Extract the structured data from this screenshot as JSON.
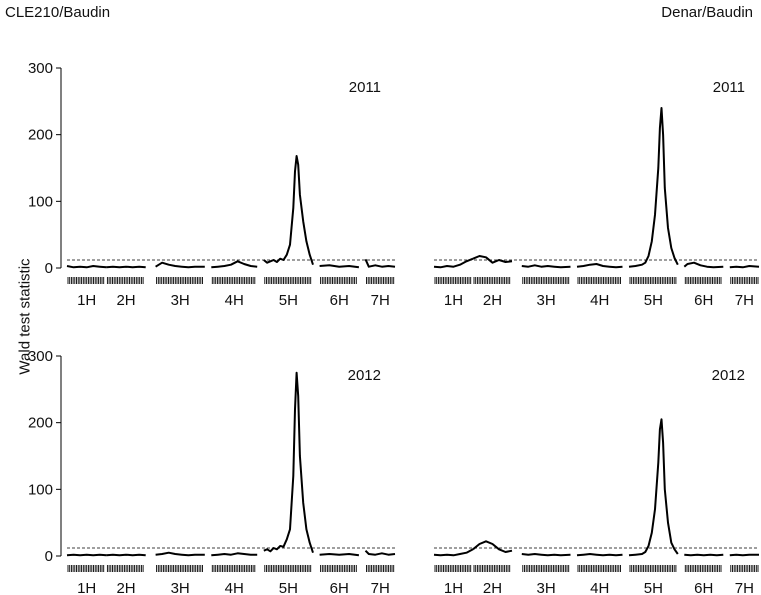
{
  "column_titles": [
    "CLE210/Baudin",
    "Denar/Baudin"
  ],
  "ylabel": "Wald test statistic",
  "chart_data": [
    {
      "type": "line",
      "cross": "CLE210/Baudin",
      "year": "2011",
      "ylim": [
        0,
        300
      ],
      "yticks": [
        0,
        100,
        200,
        300
      ],
      "xlim": [
        0,
        100
      ],
      "chromosomes": [
        "1H",
        "2H",
        "3H",
        "4H",
        "5H",
        "6H",
        "7H"
      ],
      "chromosome_ranges": [
        [
          0,
          12
        ],
        [
          12,
          24
        ],
        [
          27,
          42
        ],
        [
          44,
          58
        ],
        [
          60,
          75
        ],
        [
          77,
          89
        ],
        [
          91,
          100
        ]
      ],
      "threshold": 12,
      "series": [
        {
          "x": [
            0,
            2,
            4,
            6,
            8,
            10,
            12,
            14,
            16,
            18,
            20,
            22,
            24,
            27,
            29,
            31,
            33,
            35,
            37,
            39,
            42,
            44,
            46,
            48,
            50,
            52,
            54,
            56,
            58,
            60,
            61,
            62,
            63,
            64,
            65,
            66,
            67,
            68,
            69,
            69.5,
            70,
            70.5,
            71,
            72,
            73,
            74,
            75,
            77,
            80,
            83,
            86,
            89,
            89.5,
            91,
            92,
            94,
            96,
            98,
            100
          ],
          "y": [
            3,
            1,
            2,
            1,
            3,
            2,
            1,
            2,
            1,
            2,
            1,
            2,
            1,
            2,
            8,
            5,
            3,
            2,
            1,
            2,
            2,
            1,
            2,
            3,
            5,
            10,
            6,
            3,
            2,
            12,
            8,
            10,
            12,
            9,
            14,
            12,
            20,
            35,
            90,
            145,
            168,
            155,
            110,
            70,
            40,
            20,
            5,
            3,
            4,
            2,
            3,
            1,
            2,
            13,
            2,
            4,
            2,
            3,
            2
          ]
        }
      ]
    },
    {
      "type": "line",
      "cross": "Denar/Baudin",
      "year": "2011",
      "ylim": [
        0,
        300
      ],
      "yticks": [
        0,
        100,
        200,
        300
      ],
      "xlim": [
        0,
        100
      ],
      "chromosomes": [
        "1H",
        "2H",
        "3H",
        "4H",
        "5H",
        "6H",
        "7H"
      ],
      "chromosome_ranges": [
        [
          0,
          12
        ],
        [
          12,
          24
        ],
        [
          27,
          42
        ],
        [
          44,
          58
        ],
        [
          60,
          75
        ],
        [
          77,
          89
        ],
        [
          91,
          100
        ]
      ],
      "threshold": 12,
      "series": [
        {
          "x": [
            0,
            2,
            4,
            6,
            8,
            10,
            12,
            14,
            16,
            18,
            20,
            22,
            24,
            27,
            29,
            31,
            33,
            35,
            37,
            39,
            42,
            44,
            46,
            48,
            50,
            52,
            54,
            56,
            58,
            60,
            62,
            64,
            65,
            66,
            67,
            68,
            69,
            69.5,
            70,
            70.5,
            71,
            72,
            73,
            74,
            75,
            77,
            78,
            80,
            82,
            84,
            86,
            89,
            91,
            93,
            95,
            97,
            100
          ],
          "y": [
            2,
            1,
            3,
            2,
            5,
            10,
            14,
            18,
            16,
            8,
            12,
            9,
            10,
            3,
            2,
            4,
            2,
            3,
            2,
            1,
            2,
            2,
            3,
            5,
            6,
            3,
            2,
            1,
            2,
            2,
            3,
            5,
            8,
            18,
            40,
            80,
            150,
            210,
            240,
            200,
            120,
            60,
            30,
            15,
            5,
            2,
            6,
            8,
            4,
            2,
            1,
            2,
            1,
            2,
            1,
            3,
            2
          ]
        }
      ]
    },
    {
      "type": "line",
      "cross": "CLE210/Baudin",
      "year": "2012",
      "ylim": [
        0,
        300
      ],
      "yticks": [
        0,
        100,
        200,
        300
      ],
      "xlim": [
        0,
        100
      ],
      "chromosomes": [
        "1H",
        "2H",
        "3H",
        "4H",
        "5H",
        "6H",
        "7H"
      ],
      "chromosome_ranges": [
        [
          0,
          12
        ],
        [
          12,
          24
        ],
        [
          27,
          42
        ],
        [
          44,
          58
        ],
        [
          60,
          75
        ],
        [
          77,
          89
        ],
        [
          91,
          100
        ]
      ],
      "threshold": 12,
      "series": [
        {
          "x": [
            0,
            2,
            4,
            6,
            8,
            10,
            12,
            14,
            16,
            18,
            20,
            22,
            24,
            27,
            29,
            31,
            33,
            35,
            37,
            39,
            42,
            44,
            46,
            48,
            50,
            52,
            54,
            56,
            58,
            60,
            61,
            62,
            63,
            64,
            65,
            66,
            67,
            68,
            69,
            69.5,
            70,
            70.5,
            71,
            72,
            73,
            74,
            75,
            77,
            80,
            83,
            86,
            89,
            89.5,
            91,
            92,
            94,
            96,
            98,
            100
          ],
          "y": [
            1,
            2,
            1,
            2,
            1,
            2,
            1,
            2,
            1,
            2,
            1,
            2,
            1,
            2,
            3,
            5,
            3,
            2,
            1,
            2,
            2,
            1,
            2,
            3,
            2,
            4,
            3,
            2,
            2,
            8,
            10,
            7,
            12,
            10,
            15,
            14,
            25,
            40,
            120,
            220,
            275,
            240,
            150,
            80,
            40,
            20,
            5,
            2,
            3,
            2,
            3,
            1,
            2,
            8,
            3,
            2,
            4,
            2,
            3
          ]
        }
      ]
    },
    {
      "type": "line",
      "cross": "Denar/Baudin",
      "year": "2012",
      "ylim": [
        0,
        300
      ],
      "yticks": [
        0,
        100,
        200,
        300
      ],
      "xlim": [
        0,
        100
      ],
      "chromosomes": [
        "1H",
        "2H",
        "3H",
        "4H",
        "5H",
        "6H",
        "7H"
      ],
      "chromosome_ranges": [
        [
          0,
          12
        ],
        [
          12,
          24
        ],
        [
          27,
          42
        ],
        [
          44,
          58
        ],
        [
          60,
          75
        ],
        [
          77,
          89
        ],
        [
          91,
          100
        ]
      ],
      "threshold": 12,
      "series": [
        {
          "x": [
            0,
            2,
            4,
            6,
            8,
            10,
            12,
            14,
            16,
            18,
            20,
            22,
            24,
            27,
            29,
            31,
            33,
            35,
            37,
            39,
            42,
            44,
            46,
            48,
            50,
            52,
            54,
            56,
            58,
            60,
            62,
            64,
            65,
            66,
            67,
            68,
            69,
            69.5,
            70,
            70.5,
            71,
            72,
            73,
            74,
            75,
            77,
            79,
            81,
            83,
            85,
            87,
            89,
            91,
            93,
            95,
            97,
            100
          ],
          "y": [
            2,
            1,
            2,
            1,
            3,
            5,
            10,
            18,
            22,
            18,
            10,
            6,
            8,
            3,
            2,
            3,
            2,
            1,
            2,
            1,
            2,
            1,
            2,
            3,
            2,
            1,
            2,
            1,
            2,
            1,
            2,
            3,
            6,
            15,
            35,
            70,
            140,
            190,
            205,
            170,
            100,
            50,
            20,
            10,
            3,
            2,
            1,
            2,
            1,
            2,
            1,
            2,
            1,
            2,
            1,
            2,
            2
          ]
        }
      ]
    }
  ]
}
